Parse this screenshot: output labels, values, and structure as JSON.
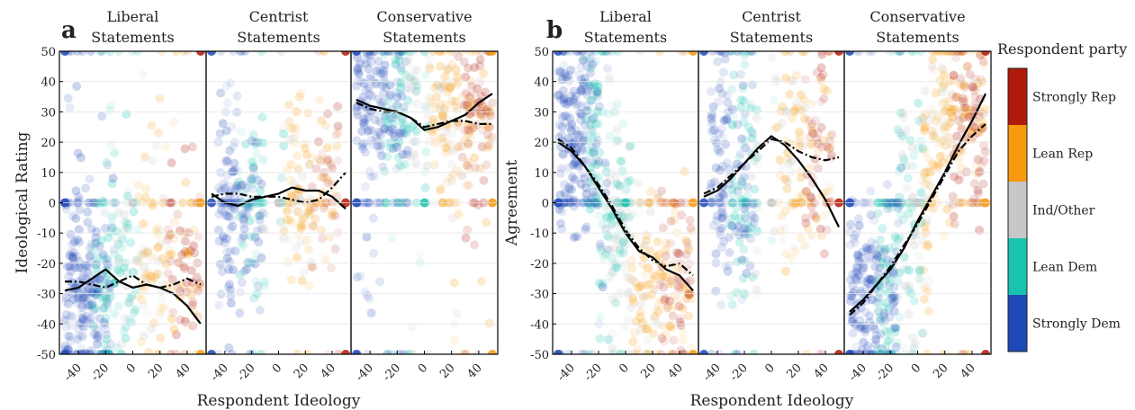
{
  "colors": {
    "strongly_dem": "#1f48b8",
    "lean_dem": "#18c4b0",
    "ind_other": "#c7c7c7",
    "lean_rep": "#f79a0d",
    "strongly_rep": "#b11a0a"
  },
  "legend": {
    "title": "Respondent party",
    "items": [
      "Strongly Rep",
      "Lean Rep",
      "Ind/Other",
      "Lean Dem",
      "Strongly Dem"
    ]
  },
  "chart_data": [
    {
      "panel_label": "a",
      "type": "scatter",
      "ylabel": "Ideological Rating",
      "xlabel": "Respondent Ideology",
      "ylim": [
        -50,
        50
      ],
      "xlim": [
        -50,
        50
      ],
      "yticks": [
        "-50",
        "-40",
        "-30",
        "-20",
        "-10",
        "0",
        "10",
        "20",
        "30",
        "40",
        "50"
      ],
      "xticks": [
        "-40",
        "-20",
        "0",
        "20",
        "40"
      ],
      "subplots": [
        {
          "title_line1": "Liberal",
          "title_line2": "Statements",
          "series": [
            {
              "style": "solid",
              "x": [
                -50,
                -40,
                -30,
                -20,
                -10,
                0,
                10,
                20,
                30,
                40,
                50
              ],
              "y": [
                -29,
                -28,
                -25,
                -22,
                -26,
                -28,
                -27,
                -28,
                -30,
                -34,
                -40
              ]
            },
            {
              "style": "dashed",
              "x": [
                -50,
                -40,
                -30,
                -20,
                -10,
                0,
                10,
                20,
                30,
                40,
                50
              ],
              "y": [
                -26,
                -26,
                -27,
                -28,
                -26,
                -24,
                -27,
                -28,
                -27,
                -25,
                -27
              ]
            }
          ]
        },
        {
          "title_line1": "Centrist",
          "title_line2": "Statements",
          "series": [
            {
              "style": "solid",
              "x": [
                -50,
                -40,
                -30,
                -20,
                -10,
                0,
                10,
                20,
                30,
                40,
                50
              ],
              "y": [
                3,
                0,
                -1,
                1,
                2,
                3,
                5,
                4,
                4,
                2,
                -2
              ]
            },
            {
              "style": "dashed",
              "x": [
                -50,
                -40,
                -30,
                -20,
                -10,
                0,
                10,
                20,
                30,
                40,
                50
              ],
              "y": [
                2,
                3,
                3,
                2,
                2,
                2,
                1,
                0,
                1,
                5,
                10
              ]
            }
          ]
        },
        {
          "title_line1": "Conservative",
          "title_line2": "Statements",
          "series": [
            {
              "style": "solid",
              "x": [
                -50,
                -40,
                -30,
                -20,
                -10,
                0,
                10,
                20,
                30,
                40,
                50
              ],
              "y": [
                34,
                32,
                31,
                30,
                28,
                24,
                25,
                27,
                29,
                33,
                36
              ]
            },
            {
              "style": "dashed",
              "x": [
                -50,
                -40,
                -30,
                -20,
                -10,
                0,
                10,
                20,
                30,
                40,
                50
              ],
              "y": [
                33,
                31,
                30,
                30,
                28,
                25,
                26,
                27,
                27,
                26,
                26
              ]
            }
          ]
        }
      ]
    },
    {
      "panel_label": "b",
      "type": "scatter",
      "ylabel": "Agreement",
      "xlabel": "Respondent Ideology",
      "ylim": [
        -50,
        50
      ],
      "xlim": [
        -50,
        50
      ],
      "yticks": [
        "-50",
        "-40",
        "-30",
        "-20",
        "-10",
        "0",
        "10",
        "20",
        "30",
        "40",
        "50"
      ],
      "xticks": [
        "-40",
        "-20",
        "0",
        "20",
        "40"
      ],
      "subplots": [
        {
          "title_line1": "Liberal",
          "title_line2": "Statements",
          "series": [
            {
              "style": "solid",
              "x": [
                -50,
                -40,
                -30,
                -20,
                -10,
                0,
                10,
                20,
                30,
                40,
                50
              ],
              "y": [
                20,
                17,
                12,
                5,
                -2,
                -10,
                -16,
                -18,
                -22,
                -24,
                -29
              ]
            },
            {
              "style": "dashed",
              "x": [
                -50,
                -40,
                -30,
                -20,
                -10,
                0,
                10,
                20,
                30,
                40,
                50
              ],
              "y": [
                21,
                18,
                12,
                6,
                -1,
                -9,
                -15,
                -19,
                -21,
                -20,
                -24
              ]
            }
          ]
        },
        {
          "title_line1": "Centrist",
          "title_line2": "Statements",
          "series": [
            {
              "style": "solid",
              "x": [
                -50,
                -40,
                -30,
                -20,
                -10,
                0,
                10,
                20,
                30,
                40,
                50
              ],
              "y": [
                2,
                4,
                8,
                13,
                18,
                22,
                19,
                14,
                8,
                1,
                -8
              ]
            },
            {
              "style": "dashed",
              "x": [
                -50,
                -40,
                -30,
                -20,
                -10,
                0,
                10,
                20,
                30,
                40,
                50
              ],
              "y": [
                3,
                5,
                9,
                13,
                17,
                21,
                20,
                17,
                15,
                14,
                15
              ]
            }
          ]
        },
        {
          "title_line1": "Conservative",
          "title_line2": "Statements",
          "series": [
            {
              "style": "solid",
              "x": [
                -50,
                -40,
                -30,
                -20,
                -10,
                0,
                10,
                20,
                30,
                40,
                50
              ],
              "y": [
                -36,
                -32,
                -27,
                -22,
                -15,
                -6,
                2,
                10,
                19,
                27,
                36
              ]
            },
            {
              "style": "dashed",
              "x": [
                -50,
                -40,
                -30,
                -20,
                -10,
                0,
                10,
                20,
                30,
                40,
                50
              ],
              "y": [
                -37,
                -33,
                -27,
                -21,
                -14,
                -7,
                1,
                9,
                17,
                22,
                26
              ]
            }
          ]
        }
      ]
    }
  ]
}
